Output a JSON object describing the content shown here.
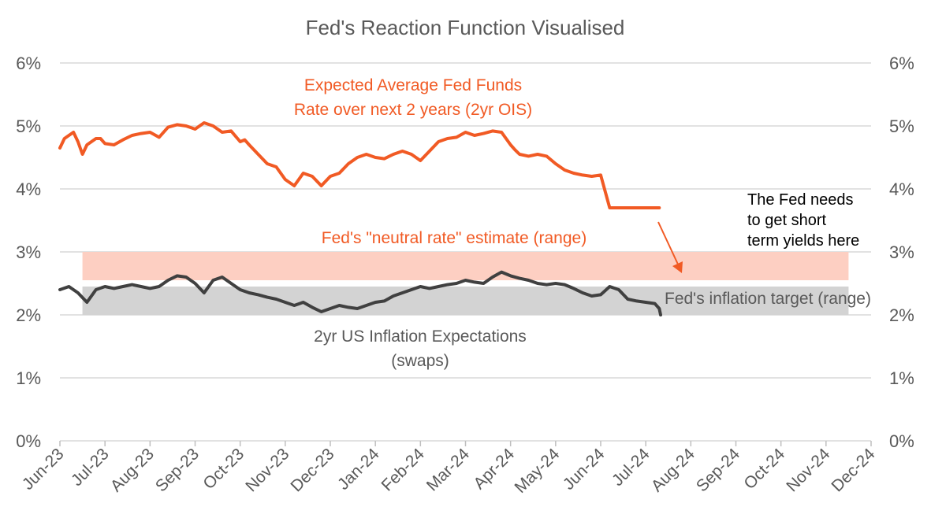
{
  "chart_data": {
    "type": "line",
    "title": "Fed's Reaction Function Visualised",
    "xlabel": "",
    "ylabel": "",
    "ylim": [
      0,
      6
    ],
    "y_ticks": [
      "0%",
      "1%",
      "2%",
      "3%",
      "4%",
      "5%",
      "6%"
    ],
    "y_tick_values": [
      0,
      1,
      2,
      3,
      4,
      5,
      6
    ],
    "x_ticks": [
      "Jun-23",
      "Jul-23",
      "Aug-23",
      "Sep-23",
      "Oct-23",
      "Nov-23",
      "Dec-23",
      "Jan-24",
      "Feb-24",
      "Mar-24",
      "Apr-24",
      "May-24",
      "Jun-24",
      "Jul-24",
      "Aug-24",
      "Sep-24",
      "Oct-24",
      "Nov-24",
      "Dec-24"
    ],
    "x_tick_months": [
      0,
      1,
      2,
      3,
      4,
      5,
      6,
      7,
      8,
      9,
      10,
      11,
      12,
      13,
      14,
      15,
      16,
      17,
      18
    ],
    "xlim_months": [
      0,
      18
    ],
    "bands": [
      {
        "name": "Fed's \"neutral rate\" estimate (range)",
        "low": 2.55,
        "high": 3.0,
        "x_start": 0.5,
        "x_end": 17.5,
        "color": "#fdcfc2"
      },
      {
        "name": "Fed's inflation target (range)",
        "low": 2.0,
        "high": 2.45,
        "x_start": 0.5,
        "x_end": 17.5,
        "color": "#d3d3d3"
      }
    ],
    "series": [
      {
        "name": "Expected Average Fed Funds Rate over next 2 years (2yr OIS)",
        "color": "#f15a24",
        "x_months": [
          0.0,
          0.1,
          0.2,
          0.3,
          0.4,
          0.5,
          0.6,
          0.7,
          0.8,
          0.9,
          1.0,
          1.2,
          1.4,
          1.6,
          1.8,
          2.0,
          2.2,
          2.4,
          2.6,
          2.8,
          3.0,
          3.2,
          3.4,
          3.6,
          3.8,
          4.0,
          4.1,
          4.2,
          4.4,
          4.6,
          4.8,
          5.0,
          5.2,
          5.4,
          5.6,
          5.8,
          6.0,
          6.2,
          6.4,
          6.6,
          6.8,
          7.0,
          7.2,
          7.4,
          7.6,
          7.8,
          8.0,
          8.2,
          8.4,
          8.6,
          8.8,
          9.0,
          9.2,
          9.4,
          9.6,
          9.8,
          10.0,
          10.1,
          10.2,
          10.4,
          10.6,
          10.8,
          11.0,
          11.2,
          11.4,
          11.6,
          11.8,
          12.0,
          12.2,
          12.4,
          12.6,
          12.8,
          13.0,
          13.1,
          13.2,
          13.3
        ],
        "values": [
          4.65,
          4.8,
          4.85,
          4.9,
          4.75,
          4.55,
          4.7,
          4.75,
          4.8,
          4.8,
          4.72,
          4.7,
          4.78,
          4.85,
          4.88,
          4.9,
          4.82,
          4.98,
          5.02,
          5.0,
          4.95,
          5.05,
          5.0,
          4.9,
          4.92,
          4.75,
          4.78,
          4.7,
          4.55,
          4.4,
          4.35,
          4.15,
          4.05,
          4.25,
          4.2,
          4.05,
          4.2,
          4.25,
          4.4,
          4.5,
          4.55,
          4.5,
          4.48,
          4.55,
          4.6,
          4.55,
          4.45,
          4.6,
          4.75,
          4.8,
          4.82,
          4.9,
          4.85,
          4.88,
          4.92,
          4.9,
          4.7,
          4.62,
          4.55,
          4.52,
          4.55,
          4.52,
          4.4,
          4.3,
          4.25,
          4.22,
          4.2,
          4.22,
          3.7,
          3.7,
          3.7,
          3.7,
          3.7,
          3.7,
          3.7,
          3.7
        ]
      },
      {
        "name": "2yr US Inflation Expectations (swaps)",
        "color": "#404040",
        "x_months": [
          0.0,
          0.2,
          0.4,
          0.6,
          0.8,
          1.0,
          1.2,
          1.4,
          1.6,
          1.8,
          2.0,
          2.2,
          2.4,
          2.6,
          2.8,
          3.0,
          3.2,
          3.4,
          3.6,
          3.8,
          4.0,
          4.2,
          4.4,
          4.6,
          4.8,
          5.0,
          5.2,
          5.4,
          5.6,
          5.8,
          6.0,
          6.2,
          6.4,
          6.6,
          6.8,
          7.0,
          7.2,
          7.4,
          7.6,
          7.8,
          8.0,
          8.2,
          8.4,
          8.6,
          8.8,
          9.0,
          9.2,
          9.4,
          9.6,
          9.8,
          10.0,
          10.2,
          10.4,
          10.6,
          10.8,
          11.0,
          11.2,
          11.4,
          11.6,
          11.8,
          12.0,
          12.2,
          12.4,
          12.6,
          12.8,
          13.0,
          13.2,
          13.3,
          13.33
        ],
        "values": [
          2.4,
          2.45,
          2.35,
          2.2,
          2.4,
          2.45,
          2.42,
          2.45,
          2.48,
          2.45,
          2.42,
          2.45,
          2.55,
          2.62,
          2.6,
          2.5,
          2.35,
          2.55,
          2.6,
          2.5,
          2.4,
          2.35,
          2.32,
          2.28,
          2.25,
          2.2,
          2.15,
          2.2,
          2.12,
          2.05,
          2.1,
          2.15,
          2.12,
          2.1,
          2.15,
          2.2,
          2.22,
          2.3,
          2.35,
          2.4,
          2.45,
          2.42,
          2.45,
          2.48,
          2.5,
          2.55,
          2.52,
          2.5,
          2.6,
          2.68,
          2.62,
          2.58,
          2.55,
          2.5,
          2.48,
          2.5,
          2.48,
          2.42,
          2.35,
          2.3,
          2.32,
          2.45,
          2.4,
          2.25,
          2.22,
          2.2,
          2.18,
          2.1,
          2.0
        ]
      }
    ],
    "annotations": {
      "ois_line1": "Expected Average Fed Funds",
      "ois_line2": "Rate over next 2 years (2yr OIS)",
      "neutral": "Fed's \"neutral rate\" estimate (range)",
      "target": "Fed's inflation target (range)",
      "infl_line1": "2yr US Inflation Expectations",
      "infl_line2": "(swaps)",
      "fed_line1": "The Fed needs",
      "fed_line2": "to get short",
      "fed_line3": "term yields here"
    },
    "colors": {
      "ois": "#f15a24",
      "inflation": "#404040",
      "neutral_band": "#fdcfc2",
      "target_band": "#d3d3d3",
      "grid": "#d9d9d9",
      "text": "#595959"
    }
  }
}
